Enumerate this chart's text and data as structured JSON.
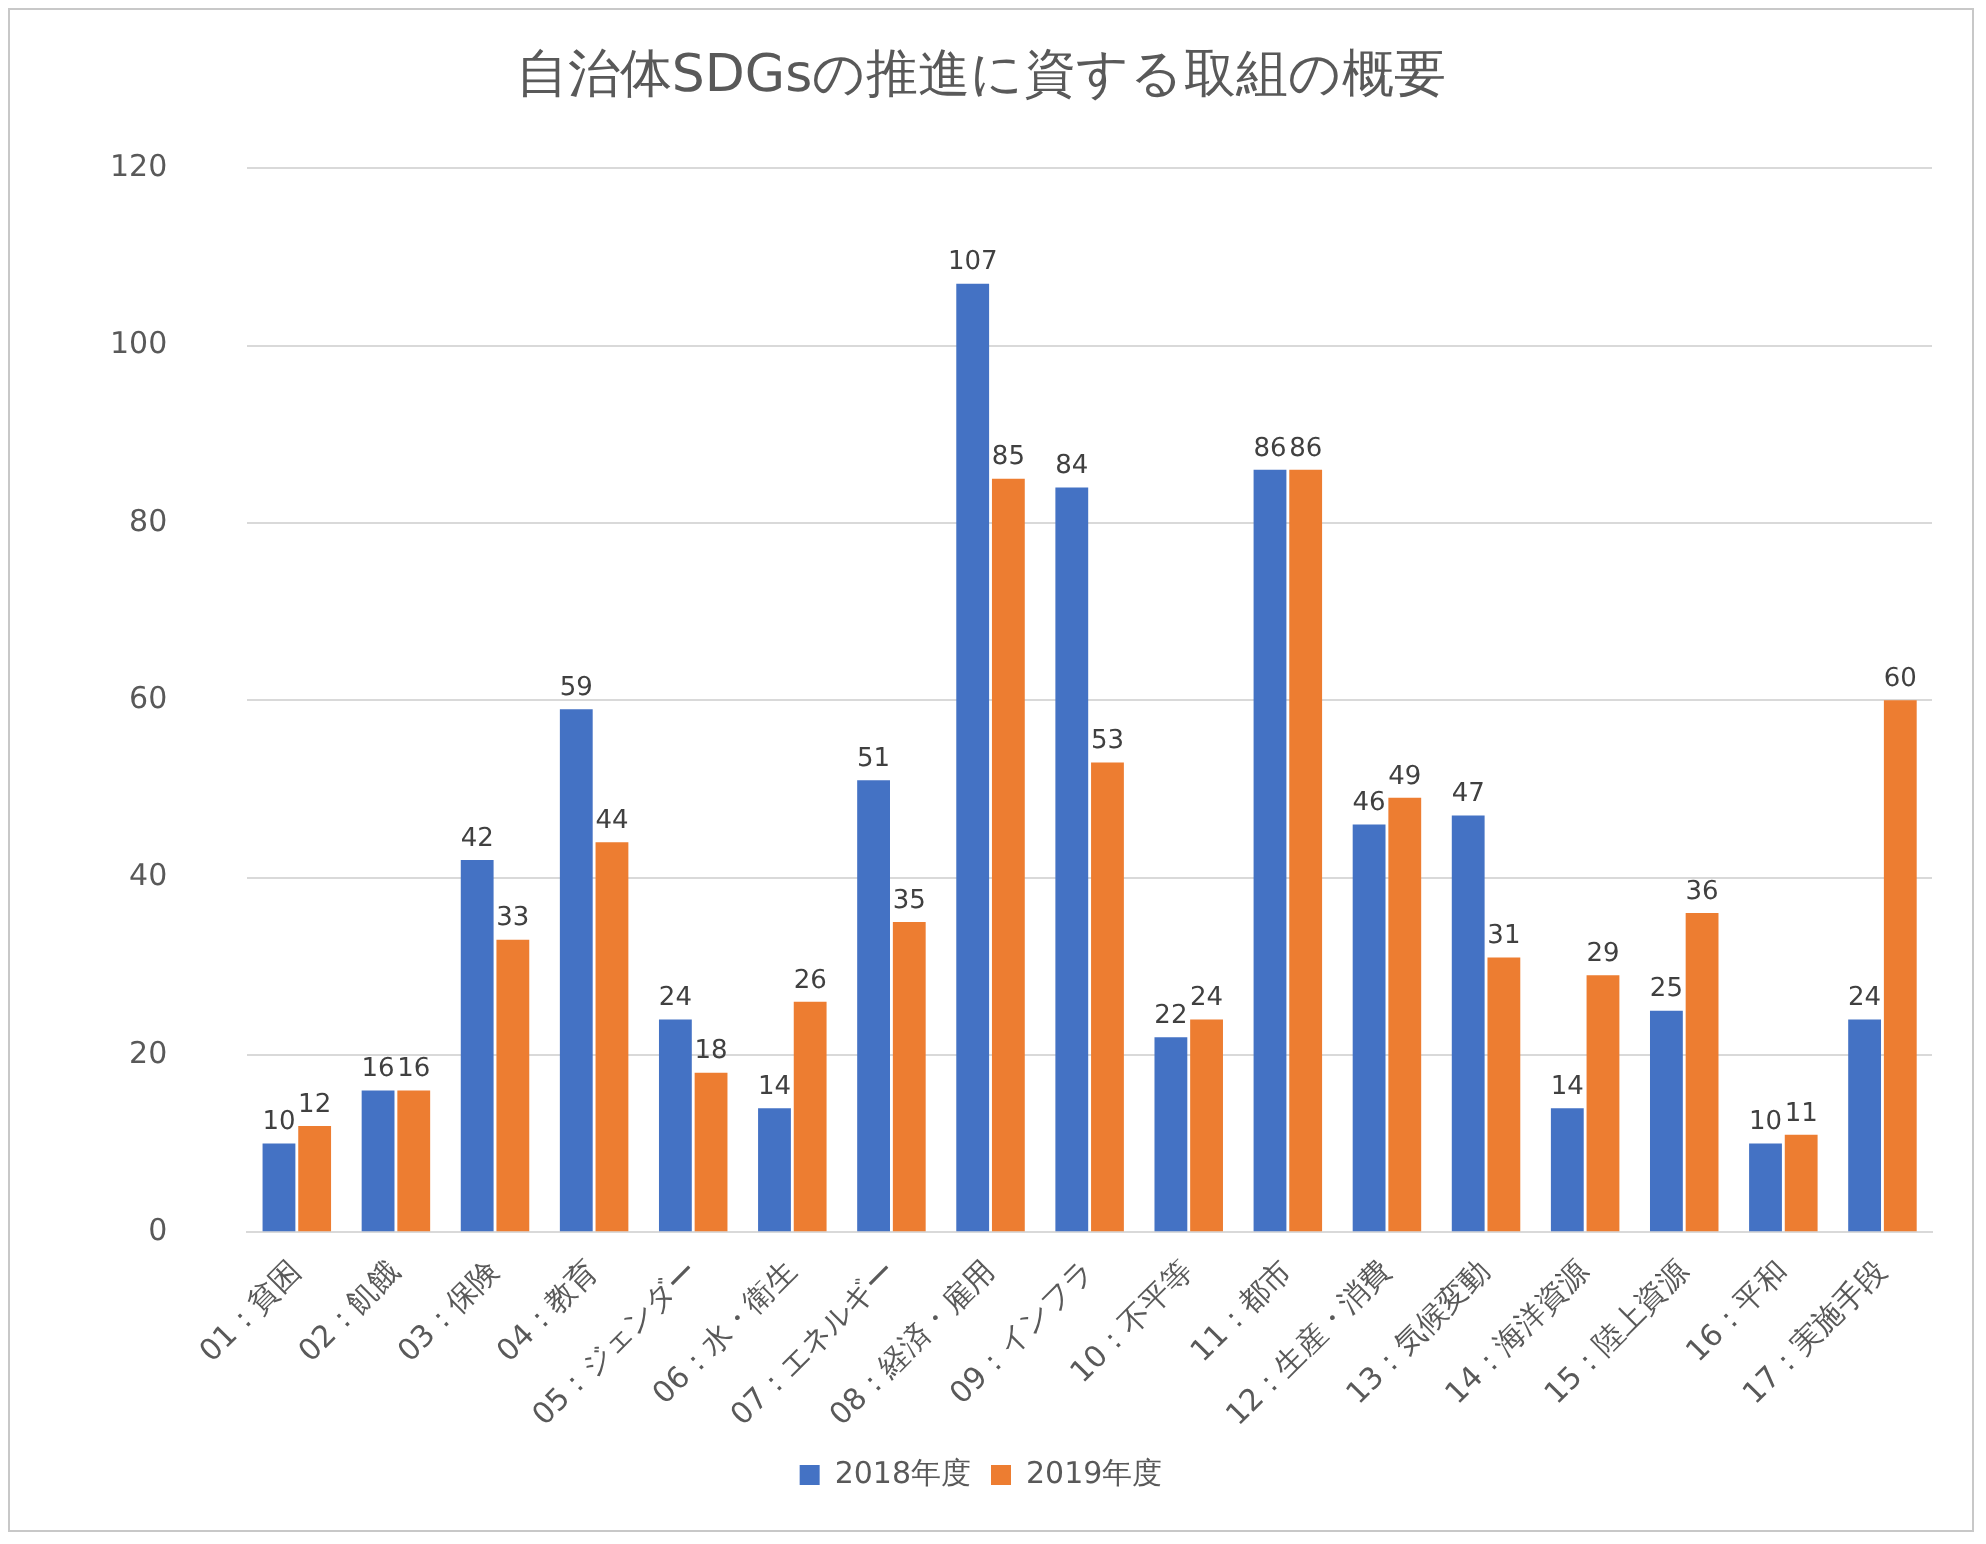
{
  "chart_data": {
    "type": "bar",
    "title": "自治体SDGsの推進に資する取組の概要",
    "categories": [
      "01：貧困",
      "02：飢餓",
      "03：保険",
      "04：教育",
      "05：ジェンダー",
      "06：水・衛生",
      "07：エネルギー",
      "08：経済・雇用",
      "09：インフラ",
      "10：不平等",
      "11：都市",
      "12：生産・消費",
      "13：気候変動",
      "14：海洋資源",
      "15：陸上資源",
      "16：平和",
      "17：実施手段"
    ],
    "series": [
      {
        "name": "2018年度",
        "color": "#4472c4",
        "values": [
          10,
          16,
          42,
          59,
          24,
          14,
          51,
          107,
          84,
          22,
          86,
          46,
          47,
          14,
          25,
          10,
          24
        ]
      },
      {
        "name": "2019年度",
        "color": "#ed7d31",
        "values": [
          12,
          16,
          33,
          44,
          18,
          26,
          35,
          85,
          53,
          24,
          86,
          49,
          31,
          29,
          36,
          11,
          60
        ]
      }
    ],
    "ylim": [
      0,
      120
    ],
    "yticks": [
      0,
      20,
      40,
      60,
      80,
      100,
      120
    ],
    "grid": "y",
    "legend": "bottom",
    "data_labels": true
  }
}
